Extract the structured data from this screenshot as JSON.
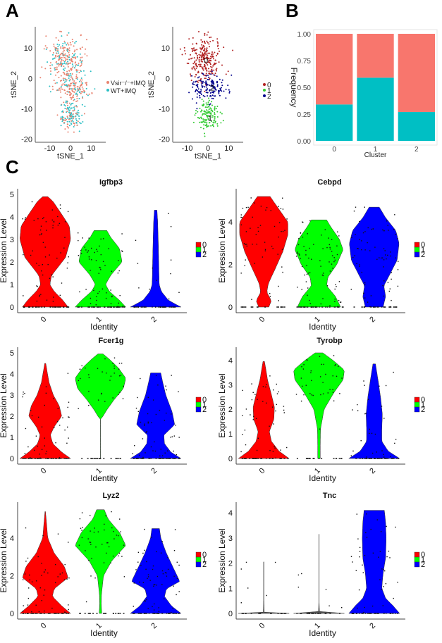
{
  "panels": {
    "a": "A",
    "b": "B",
    "c": "C"
  },
  "chart_data": [
    {
      "id": "tsne-condition",
      "type": "scatter",
      "xlabel": "tSNE_1",
      "ylabel": "tSNE_2",
      "xlim": [
        -17,
        17
      ],
      "ylim": [
        -21,
        17
      ],
      "xticks": [
        -10,
        0,
        10
      ],
      "yticks": [
        -20,
        -10,
        0,
        10
      ],
      "legend": {
        "placement": "right",
        "entries": [
          {
            "label": "Vsir⁻/⁻+IMQ",
            "color": "#E8836F"
          },
          {
            "label": "WT+IMQ",
            "color": "#2BBFC4"
          }
        ]
      },
      "note": "~600 cells colored by condition; point cloud spans roughly x -15..12, y -19..15",
      "clusters_approx": [
        {
          "name": "upper",
          "center": [
            -2,
            6
          ],
          "spread": [
            6,
            5
          ],
          "n": 260,
          "mix_wt": 0.34
        },
        {
          "name": "middle",
          "center": [
            1,
            -3
          ],
          "spread": [
            6,
            3
          ],
          "n": 150,
          "mix_wt": 0.27
        },
        {
          "name": "lower",
          "center": [
            0,
            -12
          ],
          "spread": [
            4,
            4
          ],
          "n": 140,
          "mix_wt": 0.59
        }
      ]
    },
    {
      "id": "tsne-cluster",
      "type": "scatter",
      "xlabel": "tSNE_1",
      "ylabel": "tSNE_2",
      "xlim": [
        -17,
        17
      ],
      "ylim": [
        -21,
        17
      ],
      "xticks": [
        -10,
        0,
        10
      ],
      "yticks": [
        -20,
        -10,
        0,
        10
      ],
      "cluster_labels": [
        {
          "label": "0",
          "x": -1,
          "y": 6
        },
        {
          "label": "2",
          "x": 2,
          "y": -3
        },
        {
          "label": "1",
          "x": 1,
          "y": -13
        }
      ],
      "legend": {
        "placement": "right",
        "entries": [
          {
            "label": "0",
            "color": "#B22222"
          },
          {
            "label": "1",
            "color": "#33CC33"
          },
          {
            "label": "2",
            "color": "#00008B"
          }
        ]
      }
    },
    {
      "id": "frequency-bar",
      "type": "bar",
      "stacked": true,
      "xlabel": "Cluster",
      "ylabel": "Frequency",
      "categories": [
        "0",
        "1",
        "2"
      ],
      "ylim": [
        0,
        1
      ],
      "yticks": [
        "0.00",
        "0.25",
        "0.50",
        "0.75",
        "1.00"
      ],
      "series": [
        {
          "name": "WT+IMQ",
          "color": "#00BFC4",
          "values": [
            0.34,
            0.59,
            0.27
          ]
        },
        {
          "name": "Vsir⁻/⁻+IMQ",
          "color": "#F8766D",
          "values": [
            0.66,
            0.41,
            0.73
          ]
        }
      ]
    },
    {
      "id": "violin-igfbp3",
      "type": "violin",
      "title": "Igfbp3",
      "xlabel": "Identity",
      "ylabel": "Expression Level",
      "categories": [
        "0",
        "1",
        "2"
      ],
      "ylim": [
        0,
        5
      ],
      "yticks": [
        0,
        1,
        2,
        3,
        4,
        5
      ],
      "max": [
        4.9,
        3.4,
        4.3
      ],
      "profiles": [
        [
          [
            0,
            0.9
          ],
          [
            0.3,
            0.7
          ],
          [
            0.7,
            0.35
          ],
          [
            1.0,
            0.18
          ],
          [
            1.4,
            0.25
          ],
          [
            2.2,
            0.8
          ],
          [
            3.0,
            1.0
          ],
          [
            3.6,
            0.95
          ],
          [
            4.2,
            0.6
          ],
          [
            4.7,
            0.3
          ],
          [
            4.9,
            0.1
          ]
        ],
        [
          [
            0,
            1.0
          ],
          [
            0.3,
            0.75
          ],
          [
            0.7,
            0.35
          ],
          [
            1.0,
            0.2
          ],
          [
            1.4,
            0.4
          ],
          [
            2.0,
            0.85
          ],
          [
            2.6,
            0.75
          ],
          [
            3.1,
            0.4
          ],
          [
            3.4,
            0.25
          ]
        ],
        [
          [
            0,
            1.0
          ],
          [
            0.3,
            0.5
          ],
          [
            0.7,
            0.22
          ],
          [
            1.0,
            0.14
          ],
          [
            2.0,
            0.12
          ],
          [
            3.0,
            0.1
          ],
          [
            3.8,
            0.08
          ],
          [
            4.3,
            0.05
          ]
        ]
      ]
    },
    {
      "id": "violin-cebpd",
      "type": "violin",
      "title": "Cebpd",
      "xlabel": "Identity",
      "ylabel": "Expression Level",
      "categories": [
        "0",
        "1",
        "2"
      ],
      "ylim": [
        0,
        5.3
      ],
      "yticks": [
        0,
        2,
        4
      ],
      "max": [
        5.2,
        4.1,
        4.7
      ],
      "profiles": [
        [
          [
            0,
            0.2
          ],
          [
            0.3,
            0.3
          ],
          [
            0.7,
            0.12
          ],
          [
            1.1,
            0.18
          ],
          [
            1.8,
            0.45
          ],
          [
            2.6,
            0.75
          ],
          [
            3.4,
            0.95
          ],
          [
            4.0,
            0.95
          ],
          [
            4.6,
            0.6
          ],
          [
            5.2,
            0.25
          ]
        ],
        [
          [
            0,
            0.85
          ],
          [
            0.5,
            0.65
          ],
          [
            1.0,
            0.3
          ],
          [
            1.4,
            0.35
          ],
          [
            2.0,
            0.7
          ],
          [
            2.7,
            0.95
          ],
          [
            3.2,
            0.8
          ],
          [
            3.8,
            0.45
          ],
          [
            4.1,
            0.3
          ]
        ],
        [
          [
            0,
            0.35
          ],
          [
            0.5,
            0.45
          ],
          [
            1.0,
            0.38
          ],
          [
            1.5,
            0.6
          ],
          [
            2.2,
            0.9
          ],
          [
            3.0,
            0.98
          ],
          [
            3.6,
            0.85
          ],
          [
            4.2,
            0.45
          ],
          [
            4.7,
            0.2
          ]
        ]
      ]
    },
    {
      "id": "violin-fcer1g",
      "type": "violin",
      "title": "Fcer1g",
      "xlabel": "Identity",
      "ylabel": "Expression Level",
      "categories": [
        "0",
        "1",
        "2"
      ],
      "ylim": [
        0,
        5
      ],
      "yticks": [
        0,
        1,
        2,
        3,
        4,
        5
      ],
      "max": [
        4.5,
        4.95,
        4.05
      ],
      "profiles": [
        [
          [
            0,
            1.0
          ],
          [
            0.3,
            0.65
          ],
          [
            0.7,
            0.3
          ],
          [
            1.1,
            0.2
          ],
          [
            1.5,
            0.35
          ],
          [
            2.0,
            0.65
          ],
          [
            2.5,
            0.55
          ],
          [
            3.0,
            0.32
          ],
          [
            3.6,
            0.15
          ],
          [
            4.5,
            0.02
          ]
        ],
        [
          [
            1.9,
            0.05
          ],
          [
            2.3,
            0.25
          ],
          [
            2.8,
            0.55
          ],
          [
            3.3,
            0.9
          ],
          [
            3.8,
            1.0
          ],
          [
            4.3,
            0.7
          ],
          [
            4.7,
            0.35
          ],
          [
            4.95,
            0.1
          ]
        ],
        [
          [
            0,
            1.0
          ],
          [
            0.3,
            0.6
          ],
          [
            0.7,
            0.35
          ],
          [
            1.1,
            0.32
          ],
          [
            1.6,
            0.75
          ],
          [
            2.2,
            0.65
          ],
          [
            3.0,
            0.4
          ],
          [
            3.6,
            0.28
          ],
          [
            4.05,
            0.2
          ]
        ]
      ]
    },
    {
      "id": "violin-tyrobp",
      "type": "violin",
      "title": "Tyrobp",
      "xlabel": "Identity",
      "ylabel": "Expression Level",
      "categories": [
        "0",
        "1",
        "2"
      ],
      "ylim": [
        0,
        4.3
      ],
      "yticks": [
        0,
        1,
        2,
        3,
        4
      ],
      "max": [
        3.95,
        4.3,
        3.85
      ],
      "profiles": [
        [
          [
            0,
            1.0
          ],
          [
            0.3,
            0.6
          ],
          [
            0.7,
            0.3
          ],
          [
            1.1,
            0.22
          ],
          [
            1.6,
            0.4
          ],
          [
            2.1,
            0.42
          ],
          [
            2.6,
            0.3
          ],
          [
            3.2,
            0.15
          ],
          [
            3.95,
            0.03
          ]
        ],
        [
          [
            0,
            0.05
          ],
          [
            0.5,
            0.05
          ],
          [
            1.2,
            0.06
          ],
          [
            2.0,
            0.2
          ],
          [
            2.7,
            0.6
          ],
          [
            3.2,
            0.95
          ],
          [
            3.6,
            1.0
          ],
          [
            4.0,
            0.55
          ],
          [
            4.3,
            0.15
          ]
        ],
        [
          [
            0,
            1.0
          ],
          [
            0.3,
            0.55
          ],
          [
            0.7,
            0.3
          ],
          [
            1.2,
            0.3
          ],
          [
            1.8,
            0.32
          ],
          [
            2.5,
            0.25
          ],
          [
            3.2,
            0.15
          ],
          [
            3.85,
            0.05
          ]
        ]
      ]
    },
    {
      "id": "violin-lyz2",
      "type": "violin",
      "title": "Lyz2",
      "xlabel": "Identity",
      "ylabel": "Expression Level",
      "categories": [
        "0",
        "1",
        "2"
      ],
      "ylim": [
        0,
        5.6
      ],
      "yticks": [
        0,
        2,
        4
      ],
      "max": [
        5.4,
        5.5,
        4.5
      ],
      "profiles": [
        [
          [
            0,
            1.0
          ],
          [
            0.4,
            0.65
          ],
          [
            0.9,
            0.28
          ],
          [
            1.3,
            0.35
          ],
          [
            1.9,
            0.9
          ],
          [
            2.5,
            0.75
          ],
          [
            3.2,
            0.35
          ],
          [
            4.0,
            0.1
          ],
          [
            5.4,
            0.01
          ]
        ],
        [
          [
            0,
            0.05
          ],
          [
            0.5,
            0.03
          ],
          [
            1.0,
            0.04
          ],
          [
            2.0,
            0.12
          ],
          [
            2.8,
            0.45
          ],
          [
            3.6,
            1.0
          ],
          [
            4.3,
            0.75
          ],
          [
            5.0,
            0.3
          ],
          [
            5.5,
            0.15
          ]
        ],
        [
          [
            0,
            1.0
          ],
          [
            0.4,
            0.62
          ],
          [
            0.9,
            0.35
          ],
          [
            1.3,
            0.42
          ],
          [
            1.7,
            0.95
          ],
          [
            2.4,
            0.7
          ],
          [
            3.2,
            0.42
          ],
          [
            4.0,
            0.2
          ],
          [
            4.5,
            0.15
          ]
        ]
      ]
    },
    {
      "id": "violin-tnc",
      "type": "violin",
      "title": "Tnc",
      "xlabel": "Identity",
      "ylabel": "Expression Level",
      "categories": [
        "0",
        "1",
        "2"
      ],
      "ylim": [
        0,
        4.2
      ],
      "yticks": [
        0,
        1,
        2,
        3,
        4
      ],
      "max": [
        2.05,
        3.15,
        4.1
      ],
      "profiles": [
        [
          [
            0,
            1.0
          ],
          [
            0.02,
            0.02
          ],
          [
            0.5,
            0.005
          ],
          [
            2.05,
            0.005
          ]
        ],
        [
          [
            0,
            1.0
          ],
          [
            0.02,
            0.02
          ],
          [
            0.5,
            0.005
          ],
          [
            3.15,
            0.005
          ]
        ],
        [
          [
            0,
            1.0
          ],
          [
            0.3,
            0.75
          ],
          [
            0.6,
            0.45
          ],
          [
            1.0,
            0.3
          ],
          [
            1.6,
            0.35
          ],
          [
            2.2,
            0.45
          ],
          [
            3.0,
            0.47
          ],
          [
            3.6,
            0.45
          ],
          [
            4.1,
            0.4
          ]
        ]
      ]
    }
  ],
  "violin_legend": [
    {
      "label": "0",
      "color": "#FF0000"
    },
    {
      "label": "1",
      "color": "#00FF00"
    },
    {
      "label": "2",
      "color": "#0000FF"
    }
  ]
}
